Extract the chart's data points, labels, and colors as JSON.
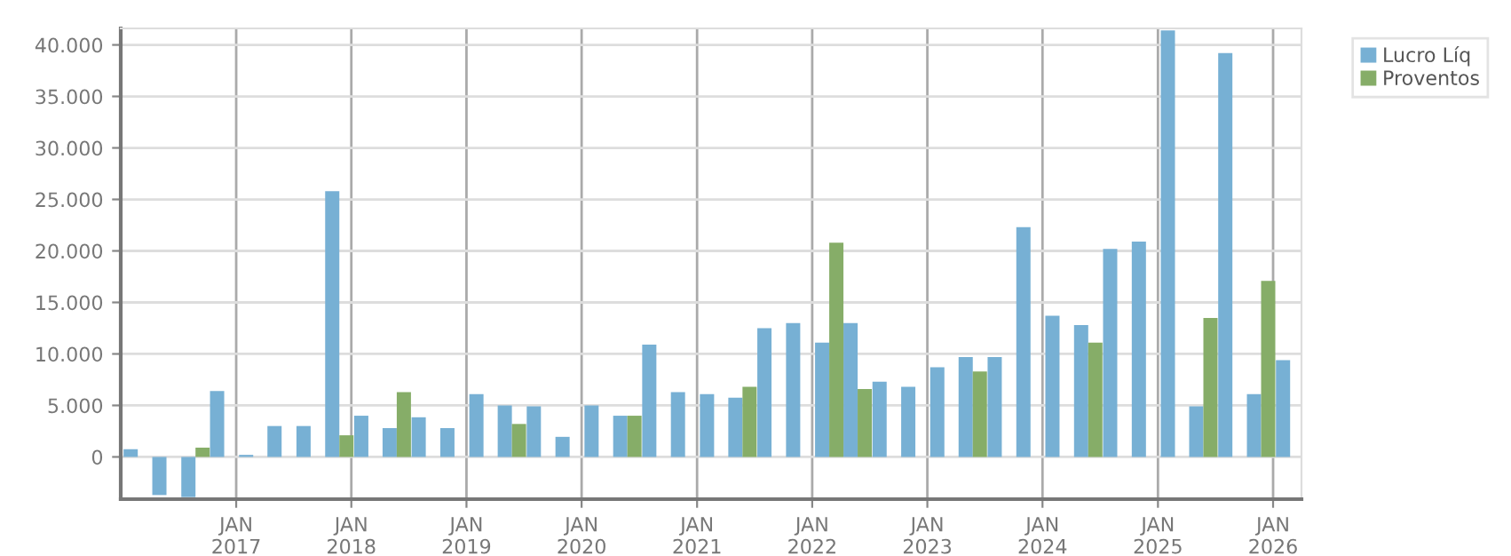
{
  "chart_data": {
    "type": "bar",
    "x": [
      "2016-02-24",
      "2016-05-25",
      "2016-08-25",
      "2016-11-24",
      "2017-02-24",
      "2017-05-25",
      "2017-08-25",
      "2017-11-24",
      "2018-02-24",
      "2018-05-25",
      "2018-08-25",
      "2018-11-24",
      "2019-02-24",
      "2019-05-25",
      "2019-08-25",
      "2019-11-24",
      "2020-02-24",
      "2020-05-25",
      "2020-08-25",
      "2020-11-24",
      "2021-02-24",
      "2021-05-25",
      "2021-08-25",
      "2021-11-24",
      "2022-02-24",
      "2022-05-25",
      "2022-08-25",
      "2022-11-24",
      "2023-02-24",
      "2023-05-25",
      "2023-08-25",
      "2023-11-24",
      "2024-02-24",
      "2024-05-25",
      "2024-08-25",
      "2024-11-24",
      "2025-02-24",
      "2025-05-25",
      "2025-08-25",
      "2025-11-24",
      "2026-02-24"
    ],
    "series": [
      {
        "name": "Lucro Líq",
        "color": "#77b0d4",
        "values": [
          750,
          -3700,
          -3900,
          6400,
          200,
          3000,
          3000,
          25800,
          4000,
          2800,
          3850,
          2800,
          6100,
          5000,
          4900,
          1950,
          5000,
          4000,
          10900,
          6300,
          6100,
          5750,
          12500,
          13000,
          11100,
          13000,
          7300,
          6800,
          8700,
          9700,
          9700,
          22300,
          13700,
          12800,
          20200,
          20900,
          41400,
          4900,
          39200,
          6100,
          9400
        ]
      },
      {
        "name": "Proventos",
        "color": "#86ad68",
        "values": [
          0,
          0,
          900,
          0,
          0,
          0,
          0,
          2100,
          0,
          6300,
          0,
          0,
          0,
          3200,
          0,
          0,
          0,
          4000,
          0,
          0,
          0,
          6800,
          0,
          0,
          20800,
          6600,
          0,
          0,
          0,
          8300,
          0,
          0,
          0,
          11100,
          0,
          0,
          0,
          13500,
          0,
          17100,
          0
        ]
      }
    ],
    "xlim": [
      "2016-01-01",
      "2026-04-01"
    ],
    "xticks": [
      {
        "value": "2017-01-01",
        "label": "JAN\n2017"
      },
      {
        "value": "2018-01-01",
        "label": "JAN\n2018"
      },
      {
        "value": "2019-01-01",
        "label": "JAN\n2019"
      },
      {
        "value": "2020-01-01",
        "label": "JAN\n2020"
      },
      {
        "value": "2021-01-01",
        "label": "JAN\n2021"
      },
      {
        "value": "2022-01-01",
        "label": "JAN\n2022"
      },
      {
        "value": "2023-01-01",
        "label": "JAN\n2023"
      },
      {
        "value": "2024-01-01",
        "label": "JAN\n2024"
      },
      {
        "value": "2025-01-01",
        "label": "JAN\n2025"
      },
      {
        "value": "2026-01-01",
        "label": "JAN\n2026"
      }
    ],
    "ylim": [
      -4100,
      41600
    ],
    "yticks": [
      0,
      {
        "value": 5000,
        "label": "5.000"
      },
      {
        "value": 10000,
        "label": "10.000"
      },
      {
        "value": 15000,
        "label": "15.000"
      },
      {
        "value": 20000,
        "label": "20.000"
      },
      {
        "value": 25000,
        "label": "25.000"
      },
      {
        "value": 30000,
        "label": "30.000"
      },
      {
        "value": 35000,
        "label": "35.000"
      },
      {
        "value": 40000,
        "label": "40.000"
      }
    ],
    "grid": true,
    "legend": "top right"
  }
}
